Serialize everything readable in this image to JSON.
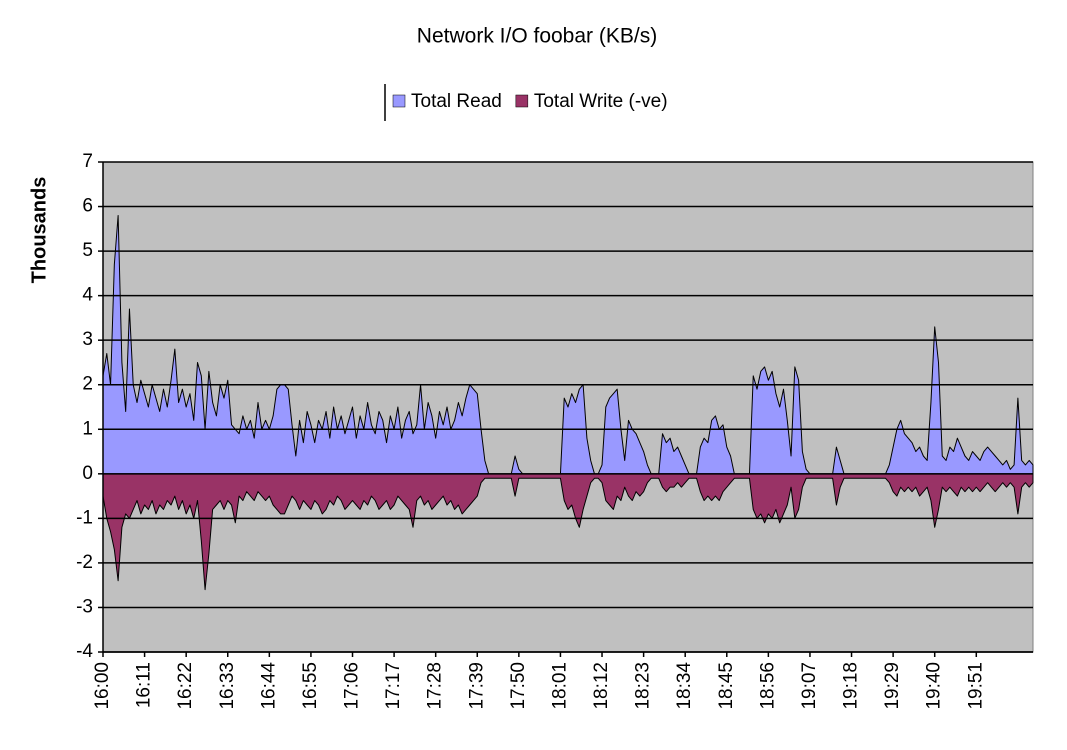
{
  "chart_data": {
    "type": "area",
    "title": "Network I/O foobar (KB/s)",
    "y_label": "Thousands",
    "legend": "top",
    "grid": true,
    "plot_background": "#c0c0c0",
    "ylim": [
      -4,
      7
    ],
    "yticks": [
      -4,
      -3,
      -2,
      -1,
      0,
      1,
      2,
      3,
      4,
      5,
      6,
      7
    ],
    "categories": [
      "16:00",
      null,
      null,
      null,
      null,
      null,
      null,
      null,
      null,
      null,
      null,
      "16:11",
      null,
      null,
      null,
      null,
      null,
      null,
      null,
      null,
      null,
      null,
      "16:22",
      null,
      null,
      null,
      null,
      null,
      null,
      null,
      null,
      null,
      null,
      "16:33",
      null,
      null,
      null,
      null,
      null,
      null,
      null,
      null,
      null,
      null,
      "16:44",
      null,
      null,
      null,
      null,
      null,
      null,
      null,
      null,
      null,
      null,
      "16:55",
      null,
      null,
      null,
      null,
      null,
      null,
      null,
      null,
      null,
      null,
      "17:06",
      null,
      null,
      null,
      null,
      null,
      null,
      null,
      null,
      null,
      null,
      "17:17",
      null,
      null,
      null,
      null,
      null,
      null,
      null,
      null,
      null,
      null,
      "17:28",
      null,
      null,
      null,
      null,
      null,
      null,
      null,
      null,
      null,
      null,
      "17:39",
      null,
      null,
      null,
      null,
      null,
      null,
      null,
      null,
      null,
      null,
      "17:50",
      null,
      null,
      null,
      null,
      null,
      null,
      null,
      null,
      null,
      null,
      "18:01",
      null,
      null,
      null,
      null,
      null,
      null,
      null,
      null,
      null,
      null,
      "18:12",
      null,
      null,
      null,
      null,
      null,
      null,
      null,
      null,
      null,
      null,
      "18:23",
      null,
      null,
      null,
      null,
      null,
      null,
      null,
      null,
      null,
      null,
      "18:34",
      null,
      null,
      null,
      null,
      null,
      null,
      null,
      null,
      null,
      null,
      "18:45",
      null,
      null,
      null,
      null,
      null,
      null,
      null,
      null,
      null,
      null,
      "18:56",
      null,
      null,
      null,
      null,
      null,
      null,
      null,
      null,
      null,
      null,
      "19:07",
      null,
      null,
      null,
      null,
      null,
      null,
      null,
      null,
      null,
      null,
      "19:18",
      null,
      null,
      null,
      null,
      null,
      null,
      null,
      null,
      null,
      null,
      "19:29",
      null,
      null,
      null,
      null,
      null,
      null,
      null,
      null,
      null,
      null,
      "19:40",
      null,
      null,
      null,
      null,
      null,
      null,
      null,
      null,
      null,
      null,
      "19:51",
      null,
      null,
      null,
      null,
      null,
      null,
      null,
      null,
      null,
      null,
      null,
      null,
      null,
      null,
      null
    ],
    "series": [
      {
        "name": "Total Read",
        "color": "#9999ff",
        "values": [
          2.2,
          2.7,
          2.0,
          4.7,
          5.8,
          2.5,
          1.4,
          3.7,
          2.0,
          1.6,
          2.1,
          1.8,
          1.5,
          2.0,
          1.7,
          1.4,
          1.9,
          1.5,
          2.1,
          2.8,
          1.6,
          1.9,
          1.5,
          1.8,
          1.2,
          2.5,
          2.2,
          1.0,
          2.3,
          1.6,
          1.3,
          2.0,
          1.7,
          2.1,
          1.1,
          1.0,
          0.9,
          1.3,
          1.0,
          1.2,
          0.8,
          1.6,
          1.0,
          1.2,
          1.0,
          1.3,
          1.9,
          2.0,
          2.0,
          1.9,
          1.1,
          0.4,
          1.2,
          0.7,
          1.4,
          1.1,
          0.7,
          1.2,
          1.0,
          1.4,
          0.8,
          1.5,
          1.0,
          1.3,
          0.9,
          1.2,
          1.5,
          0.8,
          1.3,
          1.0,
          1.6,
          1.1,
          0.9,
          1.4,
          1.2,
          0.7,
          1.3,
          1.0,
          1.5,
          0.8,
          1.2,
          1.4,
          0.9,
          1.1,
          2.0,
          1.0,
          1.6,
          1.3,
          0.8,
          1.4,
          1.1,
          1.5,
          1.0,
          1.2,
          1.6,
          1.3,
          1.7,
          2.0,
          1.9,
          1.8,
          1.0,
          0.3,
          0,
          0,
          0,
          0,
          0,
          0,
          0,
          0.4,
          0.1,
          0,
          0,
          0,
          0,
          0,
          0,
          0,
          0,
          0,
          0,
          0,
          1.7,
          1.5,
          1.8,
          1.6,
          1.9,
          2.0,
          0.8,
          0.3,
          0,
          0,
          0.2,
          1.5,
          1.7,
          1.8,
          1.9,
          1.0,
          0.3,
          1.2,
          1.0,
          0.9,
          0.7,
          0.5,
          0.2,
          0,
          0,
          0,
          0.9,
          0.7,
          0.8,
          0.5,
          0.6,
          0.4,
          0.2,
          0,
          0,
          0,
          0.6,
          0.8,
          0.7,
          1.2,
          1.3,
          1.0,
          1.1,
          0.6,
          0.4,
          0,
          0,
          0,
          0,
          0,
          2.2,
          1.9,
          2.3,
          2.4,
          2.1,
          2.3,
          1.8,
          1.5,
          1.9,
          1.2,
          0.4,
          2.4,
          2.1,
          0.5,
          0.1,
          0,
          0,
          0,
          0,
          0,
          0,
          0,
          0.6,
          0.3,
          0,
          0,
          0,
          0,
          0,
          0,
          0,
          0,
          0,
          0,
          0,
          0,
          0.2,
          0.6,
          1.0,
          1.2,
          0.9,
          0.8,
          0.7,
          0.5,
          0.6,
          0.4,
          0.3,
          1.6,
          3.3,
          2.5,
          0.4,
          0.3,
          0.6,
          0.5,
          0.8,
          0.6,
          0.4,
          0.3,
          0.5,
          0.4,
          0.3,
          0.5,
          0.6,
          0.5,
          0.4,
          0.3,
          0.2,
          0.3,
          0.1,
          0.2,
          1.7,
          0.3,
          0.2,
          0.3,
          0.2
        ]
      },
      {
        "name": "Total Write (-ve)",
        "color": "#993366",
        "values": [
          -0.5,
          -1.0,
          -1.3,
          -1.7,
          -2.4,
          -1.2,
          -0.9,
          -1.0,
          -0.8,
          -0.6,
          -0.9,
          -0.7,
          -0.8,
          -0.6,
          -0.9,
          -0.7,
          -0.8,
          -0.6,
          -0.7,
          -0.5,
          -0.8,
          -0.6,
          -0.9,
          -0.7,
          -1.0,
          -0.6,
          -1.5,
          -2.6,
          -1.8,
          -0.8,
          -0.7,
          -0.6,
          -0.8,
          -0.6,
          -0.7,
          -1.1,
          -0.5,
          -0.6,
          -0.4,
          -0.5,
          -0.6,
          -0.4,
          -0.5,
          -0.6,
          -0.5,
          -0.7,
          -0.8,
          -0.9,
          -0.9,
          -0.7,
          -0.5,
          -0.6,
          -0.8,
          -0.6,
          -0.7,
          -0.8,
          -0.6,
          -0.7,
          -0.9,
          -0.8,
          -0.6,
          -0.7,
          -0.5,
          -0.6,
          -0.8,
          -0.7,
          -0.6,
          -0.7,
          -0.8,
          -0.6,
          -0.7,
          -0.5,
          -0.6,
          -0.8,
          -0.7,
          -0.6,
          -0.8,
          -0.7,
          -0.5,
          -0.6,
          -0.7,
          -0.8,
          -1.2,
          -0.6,
          -0.5,
          -0.7,
          -0.6,
          -0.8,
          -0.7,
          -0.6,
          -0.5,
          -0.7,
          -0.6,
          -0.8,
          -0.7,
          -0.9,
          -0.8,
          -0.7,
          -0.6,
          -0.5,
          -0.2,
          -0.1,
          -0.1,
          -0.1,
          -0.1,
          -0.1,
          -0.1,
          -0.1,
          -0.1,
          -0.5,
          -0.1,
          -0.1,
          -0.1,
          -0.1,
          -0.1,
          -0.1,
          -0.1,
          -0.1,
          -0.1,
          -0.1,
          -0.1,
          -0.1,
          -0.6,
          -0.8,
          -0.7,
          -1.0,
          -1.2,
          -0.8,
          -0.5,
          -0.2,
          -0.1,
          -0.1,
          -0.2,
          -0.6,
          -0.7,
          -0.8,
          -0.5,
          -0.6,
          -0.3,
          -0.5,
          -0.6,
          -0.4,
          -0.5,
          -0.4,
          -0.2,
          -0.1,
          -0.1,
          -0.1,
          -0.3,
          -0.4,
          -0.3,
          -0.3,
          -0.2,
          -0.3,
          -0.2,
          -0.1,
          -0.1,
          -0.1,
          -0.4,
          -0.6,
          -0.5,
          -0.6,
          -0.5,
          -0.6,
          -0.4,
          -0.3,
          -0.2,
          -0.1,
          -0.1,
          -0.1,
          -0.1,
          -0.1,
          -0.8,
          -1.0,
          -0.9,
          -1.1,
          -0.9,
          -1.0,
          -0.8,
          -1.1,
          -0.9,
          -0.7,
          -0.3,
          -1.0,
          -0.8,
          -0.3,
          -0.1,
          -0.1,
          -0.1,
          -0.1,
          -0.1,
          -0.1,
          -0.1,
          -0.1,
          -0.7,
          -0.3,
          -0.1,
          -0.1,
          -0.1,
          -0.1,
          -0.1,
          -0.1,
          -0.1,
          -0.1,
          -0.1,
          -0.1,
          -0.1,
          -0.1,
          -0.2,
          -0.4,
          -0.5,
          -0.3,
          -0.4,
          -0.3,
          -0.4,
          -0.3,
          -0.5,
          -0.4,
          -0.3,
          -0.6,
          -1.2,
          -0.8,
          -0.3,
          -0.4,
          -0.3,
          -0.4,
          -0.5,
          -0.3,
          -0.4,
          -0.3,
          -0.4,
          -0.3,
          -0.4,
          -0.3,
          -0.2,
          -0.3,
          -0.4,
          -0.3,
          -0.2,
          -0.3,
          -0.2,
          -0.3,
          -0.9,
          -0.3,
          -0.2,
          -0.3,
          -0.2
        ]
      }
    ]
  }
}
